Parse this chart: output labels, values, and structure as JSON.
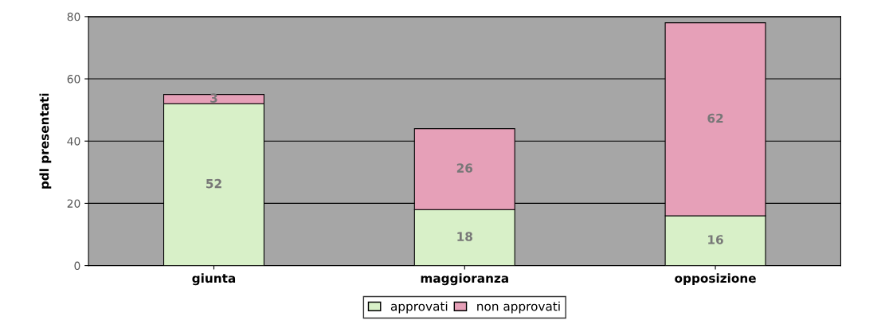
{
  "chart_data": {
    "type": "bar",
    "stacked": true,
    "ylabel": "pdl presentati",
    "categories": [
      "giunta",
      "maggioranza",
      "opposizione"
    ],
    "series": [
      {
        "name": "approvati",
        "color": "#d8f0c8",
        "values": [
          52,
          18,
          16
        ]
      },
      {
        "name": "non approvati",
        "color": "#e6a0b8",
        "values": [
          3,
          26,
          62
        ]
      }
    ],
    "ylim": [
      0,
      80
    ],
    "yticks": [
      0,
      20,
      40,
      60,
      80
    ],
    "grid": "y",
    "legend": "bottom",
    "data_labels": true
  }
}
